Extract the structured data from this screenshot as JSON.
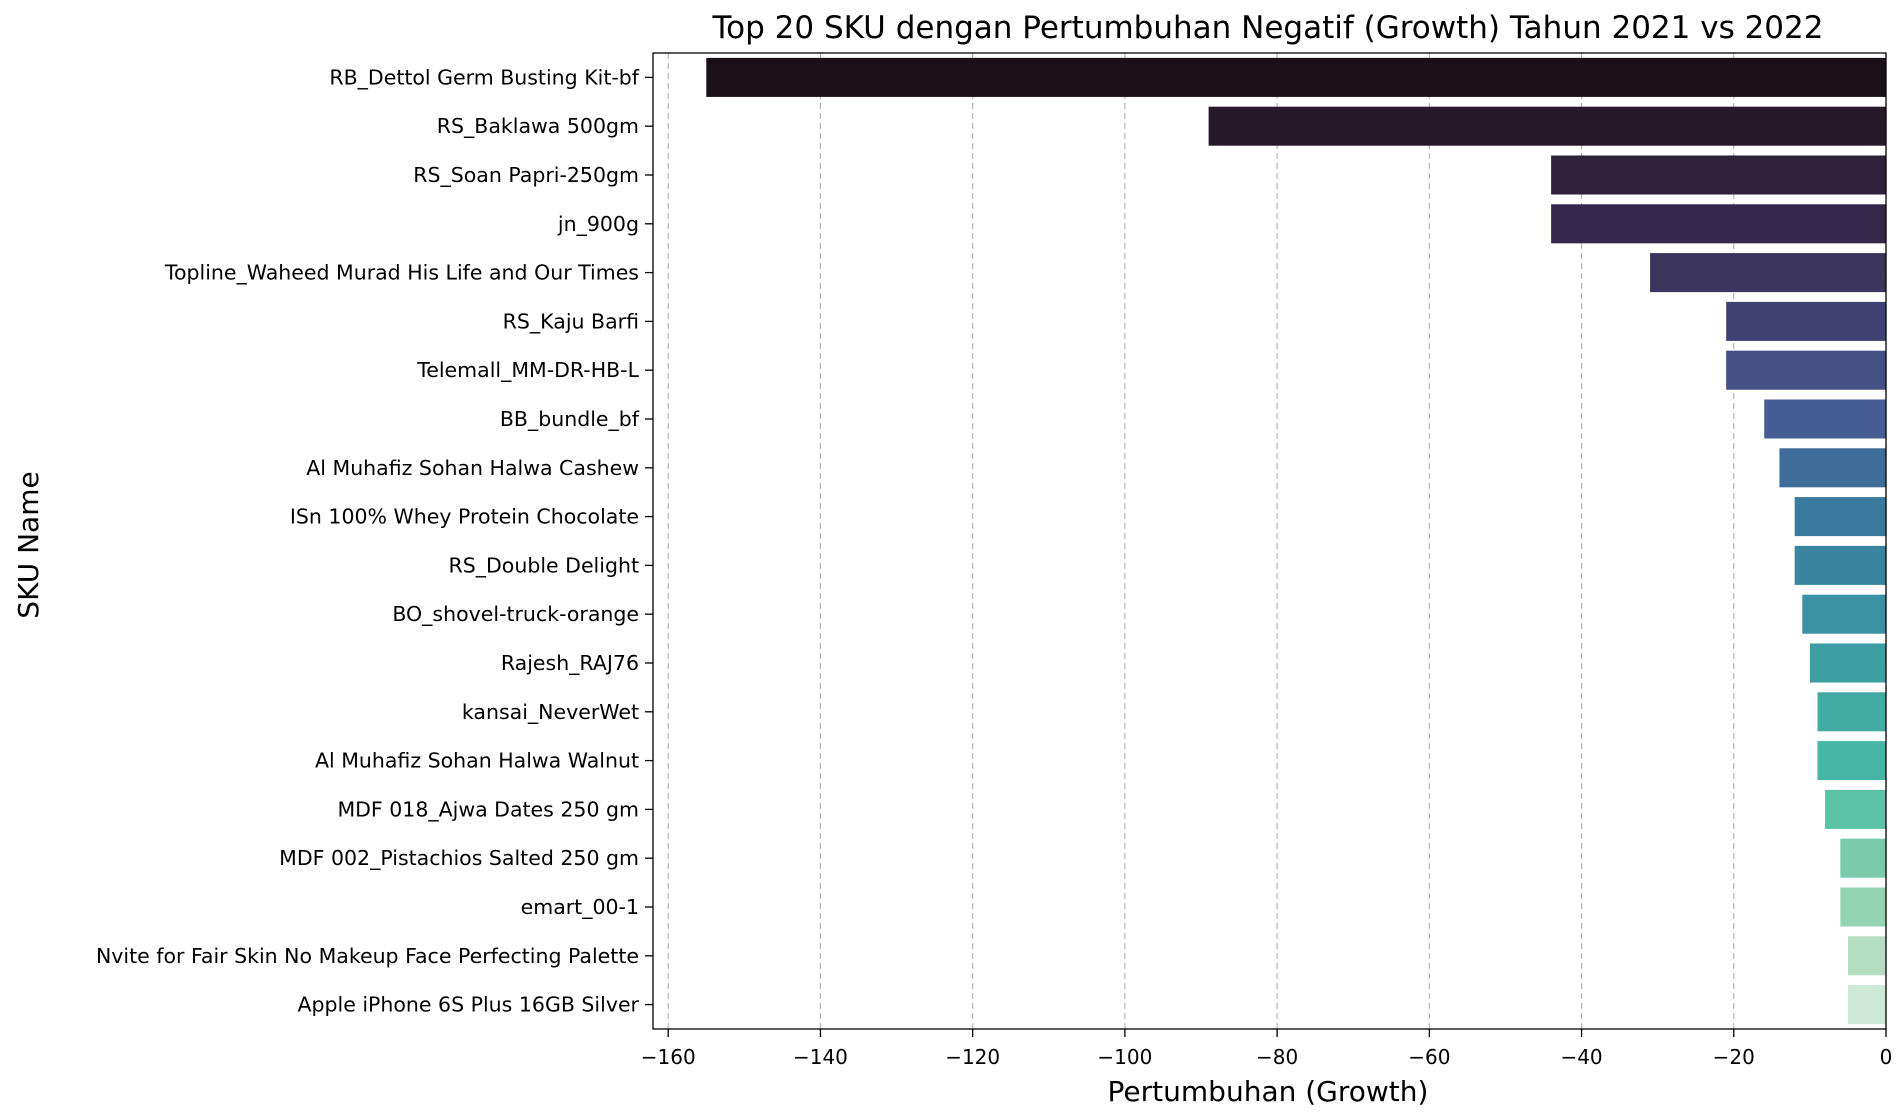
{
  "chart_data": {
    "type": "bar",
    "orientation": "horizontal",
    "title": "Top 20 SKU dengan Pertumbuhan Negatif (Growth) Tahun 2021 vs 2022",
    "xlabel": "Pertumbuhan (Growth)",
    "ylabel": "SKU Name",
    "xlim": [
      -162,
      0
    ],
    "xticks": [
      -160,
      -140,
      -120,
      -100,
      -80,
      -60,
      -40,
      -20,
      0
    ],
    "xtick_labels": [
      "−160",
      "−140",
      "−120",
      "−100",
      "−80",
      "−60",
      "−40",
      "−20",
      "0"
    ],
    "grid": "x-dashed",
    "palette": "mako",
    "categories": [
      "RB_Dettol Germ Busting Kit-bf",
      "RS_Baklawa 500gm",
      "RS_Soan Papri-250gm",
      "jn_900g",
      "Topline_Waheed Murad His Life and Our Times",
      "RS_Kaju Barfi",
      "Telemall_MM-DR-HB-L",
      "BB_bundle_bf",
      "Al Muhafiz Sohan Halwa Cashew",
      "ISn 100% Whey Protein Chocolate",
      "RS_Double Delight",
      "BO_shovel-truck-orange",
      "Rajesh_RAJ76",
      "kansai_NeverWet",
      "Al Muhafiz Sohan Halwa Walnut",
      "MDF 018_Ajwa Dates 250 gm",
      "MDF 002_Pistachios Salted 250 gm",
      "emart_00-1",
      "Nvite for Fair Skin No Makeup Face Perfecting Palette",
      "Apple iPhone 6S Plus 16GB Silver"
    ],
    "values": [
      -155,
      -89,
      -44,
      -44,
      -31,
      -21,
      -21,
      -16,
      -14,
      -12,
      -12,
      -11,
      -10,
      -9,
      -9,
      -8,
      -6,
      -6,
      -5,
      -5
    ],
    "colors": [
      "#1a1118",
      "#261a2a",
      "#2e2139",
      "#33284a",
      "#3b355e",
      "#414274",
      "#455085",
      "#465e93",
      "#3f6d9a",
      "#3b7a9e",
      "#3a86a0",
      "#3a92a2",
      "#3c9fa3",
      "#41aba4",
      "#46b7a4",
      "#5bc2a6",
      "#79cbab",
      "#95d4b3",
      "#b3dec1",
      "#cdead6"
    ]
  }
}
